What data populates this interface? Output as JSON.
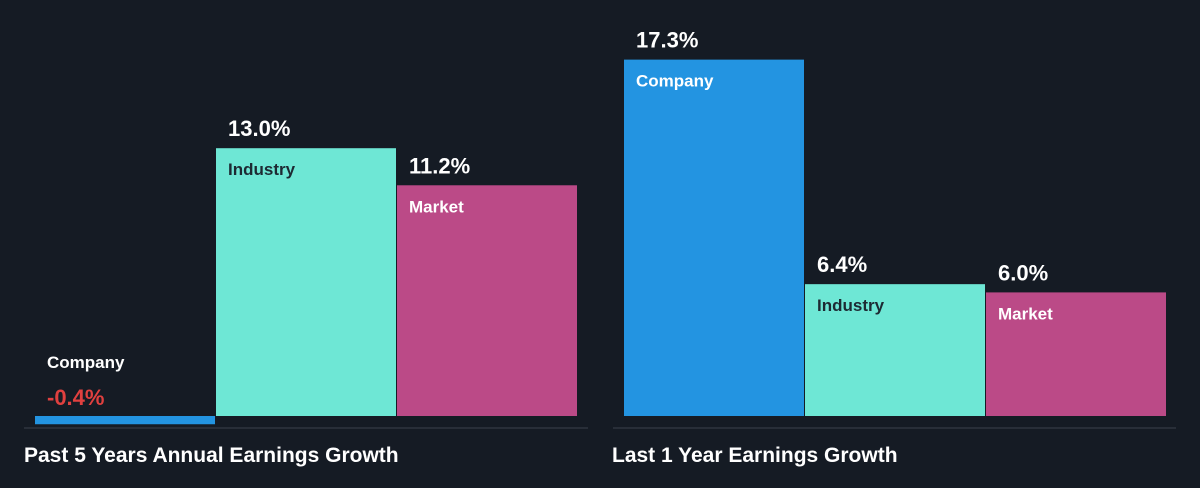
{
  "colors": {
    "background": "#151b24",
    "company": "#2394e1",
    "industry": "#6ee7d5",
    "market": "#bb4a87",
    "baseline": "#3a414b",
    "negative_text": "#e0403f",
    "label_dark": "#1d2a33",
    "label_light": "#ffffff"
  },
  "chart_data": [
    {
      "type": "bar",
      "title": "Past 5 Years Annual Earnings Growth",
      "categories": [
        "Company",
        "Industry",
        "Market"
      ],
      "values": [
        -0.4,
        13.0,
        11.2
      ],
      "value_labels": [
        "-0.4%",
        "13.0%",
        "11.2%"
      ],
      "unit": "%",
      "grid": false,
      "legend": "none"
    },
    {
      "type": "bar",
      "title": "Last 1 Year Earnings Growth",
      "categories": [
        "Company",
        "Industry",
        "Market"
      ],
      "values": [
        17.3,
        6.4,
        6.0
      ],
      "value_labels": [
        "17.3%",
        "6.4%",
        "6.0%"
      ],
      "unit": "%",
      "grid": false,
      "legend": "none"
    }
  ]
}
